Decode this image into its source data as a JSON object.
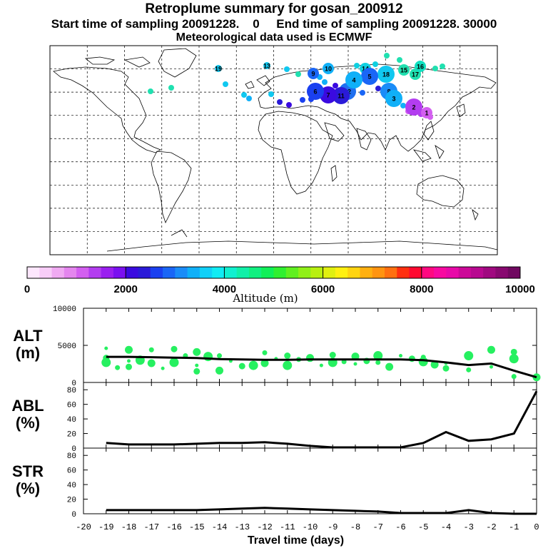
{
  "header": {
    "title": "Retroplume summary for gosan_200912",
    "sampling": "Start time of sampling 20091228.    0     End time of sampling 20091228. 30000",
    "met": "Meteorological data used is ECMWF"
  },
  "colorbar": {
    "ticks": [
      "0",
      "2000",
      "4000",
      "6000",
      "8000",
      "10000"
    ],
    "label": "Altitude  (m)",
    "colors": [
      "#fde7fd",
      "#f8cdf8",
      "#f0aaf2",
      "#e486ee",
      "#d35ff0",
      "#b33df0",
      "#9a1ff0",
      "#7a10f0",
      "#3a0ae0",
      "#2a1ad8",
      "#1a40f0",
      "#1a66f6",
      "#1a8cf8",
      "#10b0f8",
      "#10d0f8",
      "#10ecf4",
      "#10f0d0",
      "#10f0a8",
      "#10f080",
      "#10f058",
      "#30f030",
      "#60f020",
      "#90f018",
      "#b8f010",
      "#e0f010",
      "#fff010",
      "#ffd410",
      "#ffb010",
      "#ff9410",
      "#ff7010",
      "#ff3010",
      "#ff0830",
      "#ff0880",
      "#f808a0",
      "#e808a8",
      "#cc0898",
      "#b80890",
      "#a00880",
      "#880870",
      "#700860"
    ]
  },
  "map_markers": [
    {
      "label": "19",
      "color": "#10c8f0",
      "size": "small"
    },
    {
      "label": "18",
      "color": "#10c8f0",
      "size": "large"
    },
    {
      "label": "17",
      "color": "#20e0b0",
      "size": "medium"
    },
    {
      "label": "16",
      "color": "#10e0c0",
      "size": "medium"
    },
    {
      "label": "15",
      "color": "#20e0b0",
      "size": "medium"
    },
    {
      "label": "14",
      "color": "#10d0e0",
      "size": "medium"
    },
    {
      "label": "13",
      "color": "#10c8f0",
      "size": "small"
    },
    {
      "label": "12",
      "color": "#2070f0",
      "size": "large"
    },
    {
      "label": "11",
      "color": "#2a1ad8",
      "size": "large"
    },
    {
      "label": "10",
      "color": "#10b0f8",
      "size": "medium"
    },
    {
      "label": "9",
      "color": "#1a66f6",
      "size": "medium"
    },
    {
      "label": "8",
      "color": "#1a8cf8",
      "size": "large"
    },
    {
      "label": "7",
      "color": "#3a0ae0",
      "size": "large"
    },
    {
      "label": "6",
      "color": "#1a40f0",
      "size": "large"
    },
    {
      "label": "5",
      "color": "#1a66f6",
      "size": "large"
    },
    {
      "label": "4",
      "color": "#10b0f8",
      "size": "large"
    },
    {
      "label": "3",
      "color": "#10b0f8",
      "size": "large"
    },
    {
      "label": "2",
      "color": "#b33df0",
      "size": "large"
    },
    {
      "label": "1",
      "color": "#d35ff0",
      "size": "medium"
    }
  ],
  "chart_data": [
    {
      "type": "scatter+line",
      "name": "ALT",
      "ylabel": "ALT\n(m)",
      "ylabel_lines": [
        "ALT",
        "(m)"
      ],
      "ylim": [
        0,
        10000
      ],
      "yticks": [
        "0",
        "5000",
        "10000"
      ],
      "line": {
        "x": [
          -19,
          -18,
          -17,
          -16,
          -15,
          -14,
          -13,
          -12,
          -11,
          -10,
          -9,
          -8,
          -7,
          -6,
          -5,
          -4,
          -3,
          -2,
          -1,
          0
        ],
        "y": [
          3450,
          3450,
          3400,
          3350,
          3300,
          3150,
          3100,
          3050,
          3050,
          3100,
          3100,
          3100,
          3100,
          3100,
          3000,
          2700,
          2350,
          2550,
          1600,
          700
        ]
      },
      "points": {
        "x": [
          -19,
          -19,
          -19,
          -18.5,
          -18,
          -18,
          -18,
          -17.5,
          -17,
          -17,
          -16.5,
          -16,
          -16,
          -15.5,
          -15,
          -15,
          -15,
          -14.5,
          -14,
          -14,
          -13.5,
          -13,
          -12.5,
          -12,
          -12,
          -11.5,
          -11,
          -11,
          -10.5,
          -10,
          -9.5,
          -9,
          -9,
          -8.5,
          -8,
          -8,
          -7.5,
          -7,
          -7,
          -6.5,
          -6,
          -5.5,
          -5,
          -5,
          -4.5,
          -4,
          -4,
          -3,
          -3,
          -2,
          -2,
          -1,
          -1,
          -1,
          0
        ],
        "y": [
          4600,
          3300,
          2700,
          2000,
          4400,
          2900,
          2100,
          3000,
          4400,
          2600,
          1900,
          4500,
          2700,
          3600,
          4100,
          2300,
          1500,
          3500,
          3600,
          1600,
          2900,
          2200,
          2300,
          4000,
          2600,
          3200,
          3600,
          2300,
          3100,
          3300,
          2300,
          3700,
          2700,
          2800,
          3500,
          2500,
          2900,
          3600,
          2700,
          2100,
          3600,
          3200,
          2800,
          3400,
          2400,
          2600,
          1900,
          3600,
          1700,
          4400,
          2100,
          4100,
          3200,
          800,
          700
        ]
      },
      "marker_color": "#26f060"
    },
    {
      "type": "line",
      "name": "ABL",
      "ylabel": "ABL\n(%)",
      "ylabel_lines": [
        "ABL",
        "(%)"
      ],
      "ylim": [
        0,
        90
      ],
      "yticks": [
        "0",
        "20",
        "40",
        "60",
        "80"
      ],
      "x": [
        -19,
        -18,
        -17,
        -16,
        -15,
        -14,
        -13,
        -12,
        -11,
        -10,
        -9,
        -8,
        -7,
        -6,
        -5,
        -4,
        -3,
        -2,
        -1,
        0
      ],
      "y": [
        7,
        5,
        5,
        5,
        6,
        7,
        7,
        8,
        6,
        3,
        1,
        1,
        1,
        1,
        7,
        22,
        10,
        12,
        20,
        78
      ]
    },
    {
      "type": "line",
      "name": "STR",
      "ylabel": "STR\n(%)",
      "ylabel_lines": [
        "STR",
        "(%)"
      ],
      "ylim": [
        0,
        90
      ],
      "yticks": [
        "0",
        "20",
        "40",
        "60",
        "80"
      ],
      "x": [
        -19,
        -18,
        -17,
        -16,
        -15,
        -14,
        -13,
        -12,
        -11,
        -10,
        -9,
        -8,
        -7,
        -6,
        -5,
        -4,
        -3,
        -2,
        -1,
        0
      ],
      "y": [
        5,
        5,
        5,
        5,
        5,
        6,
        7,
        8,
        7,
        6,
        5,
        4,
        3,
        1,
        1,
        1,
        5,
        1,
        0,
        0
      ],
      "xlabel": "Travel time (days)",
      "xticks": [
        "-20",
        "-19",
        "-18",
        "-17",
        "-16",
        "-15",
        "-14",
        "-13",
        "-12",
        "-11",
        "-10",
        "-9",
        "-8",
        "-7",
        "-6",
        "-5",
        "-4",
        "-3",
        "-2",
        "-1",
        "0"
      ]
    }
  ]
}
